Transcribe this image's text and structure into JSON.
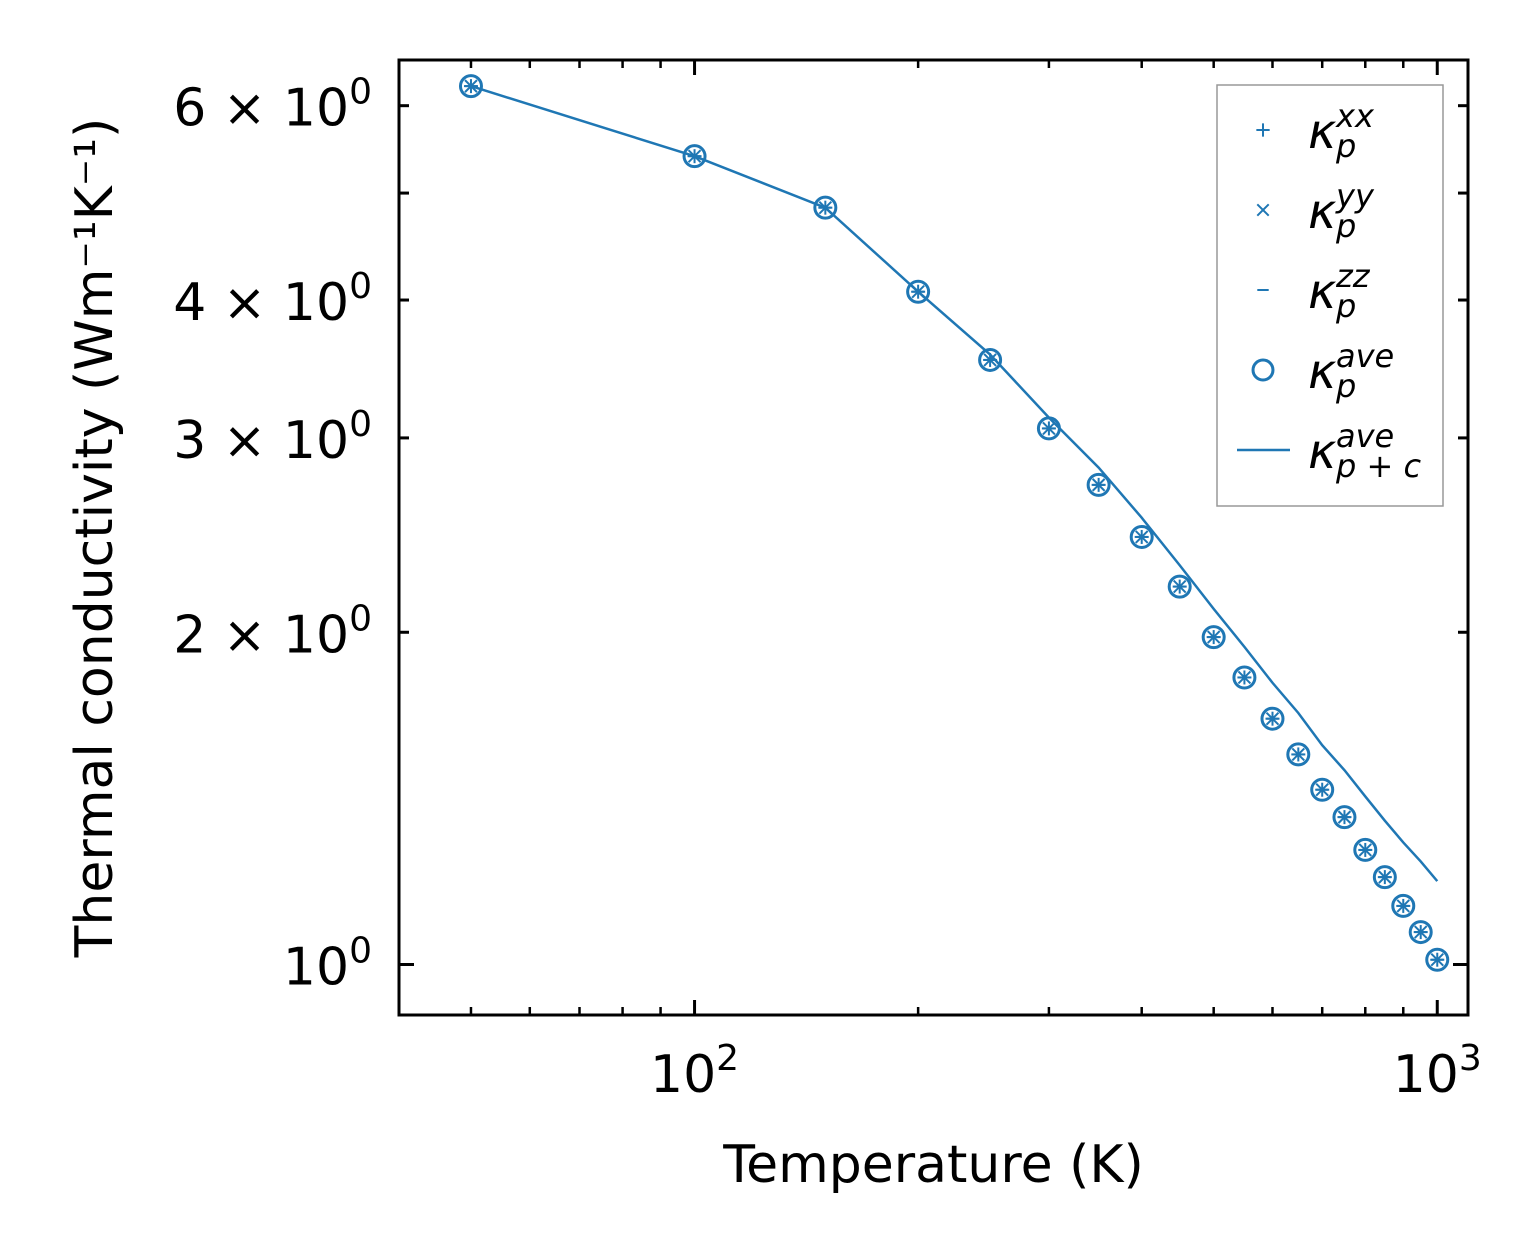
{
  "colors": {
    "series": "#1f77b4",
    "axes": "#000000",
    "legend_frame": "#999999"
  },
  "chart_data": {
    "type": "scatter",
    "title": "",
    "xlabel": "Temperature (K)",
    "ylabel": "Thermal conductivity (Wm⁻¹K⁻¹)",
    "xscale": "log",
    "yscale": "log",
    "xlim": [
      40,
      1100
    ],
    "ylim": [
      0.9,
      6.6
    ],
    "grid": false,
    "legend_position": "top-right",
    "x_ticks": [
      {
        "value": 100,
        "base": "10",
        "exp": "2"
      },
      {
        "value": 1000,
        "base": "10",
        "exp": "3"
      }
    ],
    "y_ticks": [
      {
        "value": 6,
        "mantissa": "6",
        "base": "10",
        "exp": "0"
      },
      {
        "value": 4,
        "mantissa": "4",
        "base": "10",
        "exp": "0"
      },
      {
        "value": 3,
        "mantissa": "3",
        "base": "10",
        "exp": "0"
      },
      {
        "value": 2,
        "mantissa": "2",
        "base": "10",
        "exp": "0"
      },
      {
        "value": 1,
        "mantissa": "",
        "base": "10",
        "exp": "0"
      }
    ],
    "x": [
      50,
      100,
      150,
      200,
      250,
      300,
      350,
      400,
      450,
      500,
      550,
      600,
      650,
      700,
      750,
      800,
      850,
      900,
      950,
      1000
    ],
    "series": [
      {
        "name": "κ_p^xx",
        "sym": "κ",
        "sub": "p",
        "sup": "xx",
        "marker": "plus",
        "values": [
          6.25,
          5.4,
          4.85,
          4.07,
          3.53,
          3.06,
          2.72,
          2.44,
          2.2,
          1.98,
          1.82,
          1.67,
          1.55,
          1.44,
          1.36,
          1.27,
          1.2,
          1.13,
          1.07,
          1.01
        ]
      },
      {
        "name": "κ_p^yy",
        "sym": "κ",
        "sub": "p",
        "sup": "yy",
        "marker": "x",
        "values": [
          6.25,
          5.4,
          4.85,
          4.07,
          3.53,
          3.06,
          2.72,
          2.44,
          2.2,
          1.98,
          1.82,
          1.67,
          1.55,
          1.44,
          1.36,
          1.27,
          1.2,
          1.13,
          1.07,
          1.01
        ]
      },
      {
        "name": "κ_p^zz",
        "sym": "κ",
        "sub": "p",
        "sup": "zz",
        "marker": "hline",
        "values": [
          6.25,
          5.4,
          4.85,
          4.07,
          3.53,
          3.06,
          2.72,
          2.44,
          2.2,
          1.98,
          1.82,
          1.67,
          1.55,
          1.44,
          1.36,
          1.27,
          1.2,
          1.13,
          1.07,
          1.01
        ]
      },
      {
        "name": "κ_p^ave",
        "sym": "κ",
        "sub": "p",
        "sup": "ave",
        "marker": "circle",
        "values": [
          6.25,
          5.4,
          4.85,
          4.07,
          3.53,
          3.06,
          2.72,
          2.44,
          2.2,
          1.98,
          1.82,
          1.67,
          1.55,
          1.44,
          1.36,
          1.27,
          1.2,
          1.13,
          1.07,
          1.01
        ]
      },
      {
        "name": "κ_p+c^ave",
        "sym": "κ",
        "sub": "p + c",
        "sup": "ave",
        "marker": "line",
        "values": [
          6.25,
          5.4,
          4.85,
          4.07,
          3.57,
          3.13,
          2.82,
          2.54,
          2.3,
          2.1,
          1.94,
          1.8,
          1.69,
          1.58,
          1.5,
          1.42,
          1.35,
          1.29,
          1.24,
          1.19
        ]
      }
    ]
  }
}
